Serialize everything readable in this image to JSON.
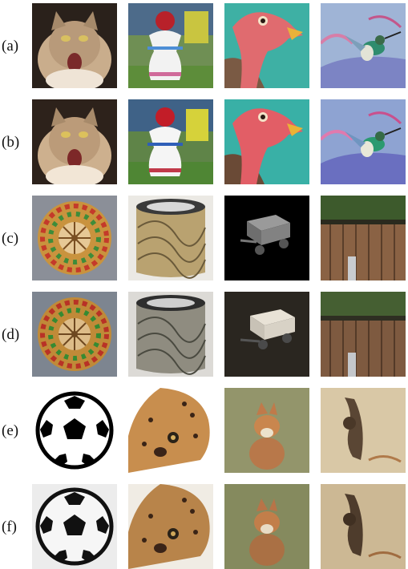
{
  "rows": [
    {
      "label": "(a)",
      "tiles": [
        "cat-photo",
        "inflatable-bell-toy",
        "vulture-painting",
        "hummingbird-painting"
      ]
    },
    {
      "label": "(b)",
      "tiles": [
        "cat-photo",
        "inflatable-bell-toy",
        "vulture-painting",
        "hummingbird-painting"
      ]
    },
    {
      "label": "(c)",
      "tiles": [
        "food-mandala",
        "swirl-cylinder",
        "wagon-render",
        "wooden-fence"
      ]
    },
    {
      "label": "(d)",
      "tiles": [
        "food-mandala",
        "swirl-cylinder",
        "wagon-render",
        "wooden-fence"
      ]
    },
    {
      "label": "(e)",
      "tiles": [
        "soccer-ball",
        "leopard-cub",
        "fox-painting",
        "animal-sketch"
      ]
    },
    {
      "label": "(f)",
      "tiles": [
        "soccer-ball",
        "leopard-cub",
        "fox-painting",
        "animal-sketch"
      ]
    }
  ],
  "colors": {
    "background": "#ffffff",
    "label": "#111111"
  }
}
